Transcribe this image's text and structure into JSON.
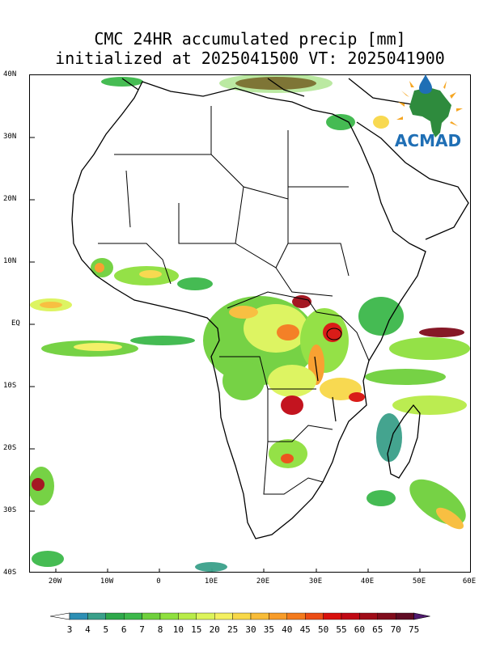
{
  "title": {
    "line1": "CMC 24HR accumulated precip [mm]",
    "line2": "initialized at 2025041500 VT: 2025041900"
  },
  "logo": {
    "text": "ACMAD",
    "colors": {
      "africa": "#2e8b3d",
      "sun": "#f5a623",
      "drop": "#1f6fb5"
    }
  },
  "axes": {
    "lat_labels": [
      "40N",
      "30N",
      "20N",
      "10N",
      "EQ",
      "10S",
      "20S",
      "30S",
      "40S"
    ],
    "lon_labels": [
      "20W",
      "10W",
      "0",
      "10E",
      "20E",
      "30E",
      "40E",
      "50E",
      "60E"
    ]
  },
  "colorbar": {
    "labels": [
      "3",
      "4",
      "5",
      "6",
      "7",
      "8",
      "10",
      "15",
      "20",
      "25",
      "30",
      "35",
      "40",
      "45",
      "50",
      "55",
      "60",
      "65",
      "70",
      "75"
    ],
    "colors": [
      "#2d8fb4",
      "#3aa08a",
      "#2ea84a",
      "#3cb84a",
      "#6fd03c",
      "#8fe03e",
      "#b8ec48",
      "#dcf45a",
      "#f4f060",
      "#f8d848",
      "#f8bc38",
      "#f89c28",
      "#f47a1c",
      "#ec4c14",
      "#d8100c",
      "#c00814",
      "#a00c18",
      "#800c1c",
      "#600c24",
      "#501a6e"
    ]
  }
}
